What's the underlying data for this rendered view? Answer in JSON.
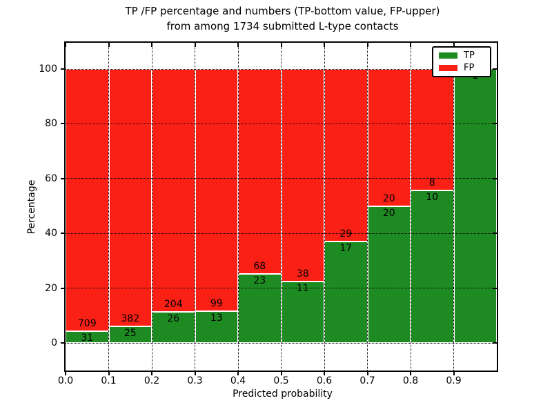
{
  "title": {
    "line1": "TP /FP percentage and numbers (TP-bottom value, FP-upper)",
    "line2": "from among 1734 submitted L-type contacts"
  },
  "axes": {
    "xlabel": "Predicted probability",
    "ylabel": "Percentage",
    "x_tick_labels": [
      "0.0",
      "0.1",
      "0.2",
      "0.3",
      "0.4",
      "0.5",
      "0.6",
      "0.7",
      "0.8",
      "0.9"
    ],
    "y_tick_labels": [
      "0",
      "20",
      "40",
      "60",
      "80",
      "100"
    ]
  },
  "legend": {
    "position": "upper right",
    "items": [
      {
        "label": "TP",
        "color": "#1e8b22"
      },
      {
        "label": "FP",
        "color": "#fa2015"
      }
    ]
  },
  "chart_data": {
    "type": "bar",
    "stacked": true,
    "normalized": "each bin stacked to 100 percent",
    "title": "TP /FP percentage and numbers (TP-bottom value, FP-upper) from among 1734 submitted L-type contacts",
    "xlabel": "Predicted probability",
    "ylabel": "Percentage",
    "xlim": [
      0.0,
      1.0
    ],
    "ylim": [
      -11,
      110
    ],
    "x_ticks": [
      0.0,
      0.1,
      0.2,
      0.3,
      0.4,
      0.5,
      0.6,
      0.7,
      0.8,
      0.9
    ],
    "y_ticks": [
      0,
      20,
      40,
      60,
      80,
      100
    ],
    "bins": {
      "start": 0.0,
      "width": 0.1,
      "count": 10
    },
    "total_contacts": 1734,
    "grid": "dotted black, both axes, drawn over bars",
    "legend_position": "upper right",
    "series": [
      {
        "name": "TP",
        "color": "#1e8b22",
        "counts": [
          31,
          25,
          26,
          13,
          23,
          11,
          17,
          20,
          10,
          1
        ]
      },
      {
        "name": "FP",
        "color": "#fa2015",
        "counts": [
          709,
          382,
          204,
          99,
          68,
          38,
          29,
          20,
          8,
          0
        ]
      }
    ],
    "tp_percent_heights": [
      4.2,
      6.1,
      11.3,
      11.6,
      25.3,
      22.4,
      37.0,
      50.0,
      55.6,
      100.0
    ],
    "bar_edge_color": "#ffffff"
  }
}
